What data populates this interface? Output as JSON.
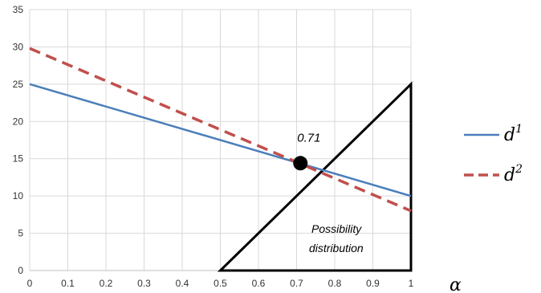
{
  "chart_data": {
    "type": "line",
    "xlabel": "α",
    "ylabel": "",
    "xlim": [
      0,
      1
    ],
    "ylim": [
      0,
      35
    ],
    "grid": true,
    "x_ticks": [
      "0",
      "0.1",
      "0.2",
      "0.3",
      "0.4",
      "0.5",
      "0.6",
      "0.7",
      "0.8",
      "0.9",
      "1"
    ],
    "y_ticks": [
      "0",
      "5",
      "10",
      "15",
      "20",
      "25",
      "30",
      "35"
    ],
    "series": [
      {
        "name": "d1",
        "color": "#4a7ebb",
        "dash": "solid",
        "points": [
          [
            0,
            25
          ],
          [
            1,
            10
          ]
        ]
      },
      {
        "name": "d2",
        "color": "#c0504d",
        "dash": "dashed",
        "points": [
          [
            0,
            29.8
          ],
          [
            1,
            8
          ]
        ]
      }
    ],
    "triangle": {
      "color": "#000000",
      "points": [
        [
          0.5,
          0
        ],
        [
          1,
          25
        ],
        [
          1,
          0
        ]
      ]
    },
    "intersection": {
      "x": 0.71,
      "y": 14.4,
      "label": "0.71"
    },
    "annotation": {
      "line1": "Possibility",
      "line2": "distribution"
    },
    "legend": {
      "placement": "right",
      "items": [
        {
          "base": "d",
          "sup": "1",
          "color": "#4a7ebb",
          "dash": "solid"
        },
        {
          "base": "d",
          "sup": "2",
          "color": "#c0504d",
          "dash": "dashed"
        }
      ]
    }
  }
}
